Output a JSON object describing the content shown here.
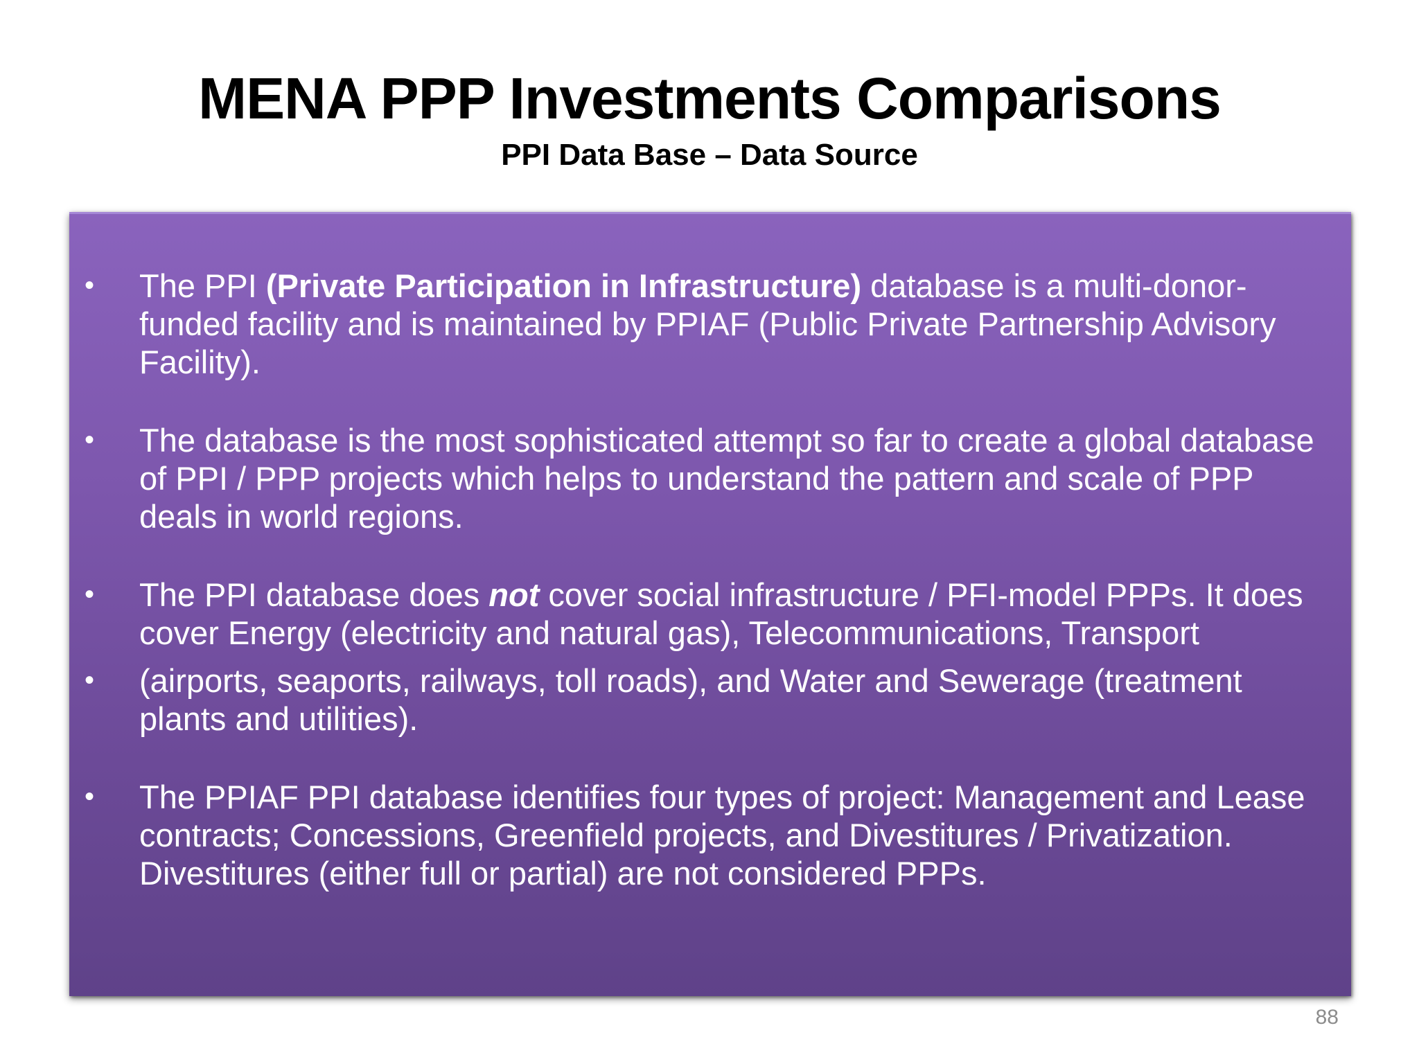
{
  "slide": {
    "title": "MENA PPP Investments Comparisons",
    "subtitle": "PPI Data Base – Data Source",
    "page_number": "88"
  },
  "bullets": [
    {
      "pre": "The PPI ",
      "emphasis": "(Private Participation in Infrastructure)",
      "post": " database is a multi-donor-funded facility and is maintained by PPIAF (Public Private Partnership Advisory Facility)."
    },
    {
      "text": "The database is the most sophisticated attempt so far to create a global database of PPI / PPP projects which helps to understand the pattern and scale of PPP deals in world regions."
    },
    {
      "pre": "The PPI database does ",
      "emphasis": "not",
      "post": " cover social infrastructure / PFI-model PPPs. It does cover Energy (electricity and natural gas), Telecommunications, Transport"
    },
    {
      "text": "(airports, seaports, railways, toll roads), and Water and Sewerage (treatment plants and utilities)."
    },
    {
      "text": "The PPIAF PPI database identifies four types of project: Management and Lease contracts; Concessions, Greenfield projects, and Divestitures / Privatization. Divestitures (either full or partial) are not considered PPPs."
    }
  ],
  "icons": {
    "bullet": "bullet-dot-icon"
  },
  "colors": {
    "panel_top": "#8a63bd",
    "panel_bottom": "#5f4289",
    "text": "#ffffff"
  }
}
